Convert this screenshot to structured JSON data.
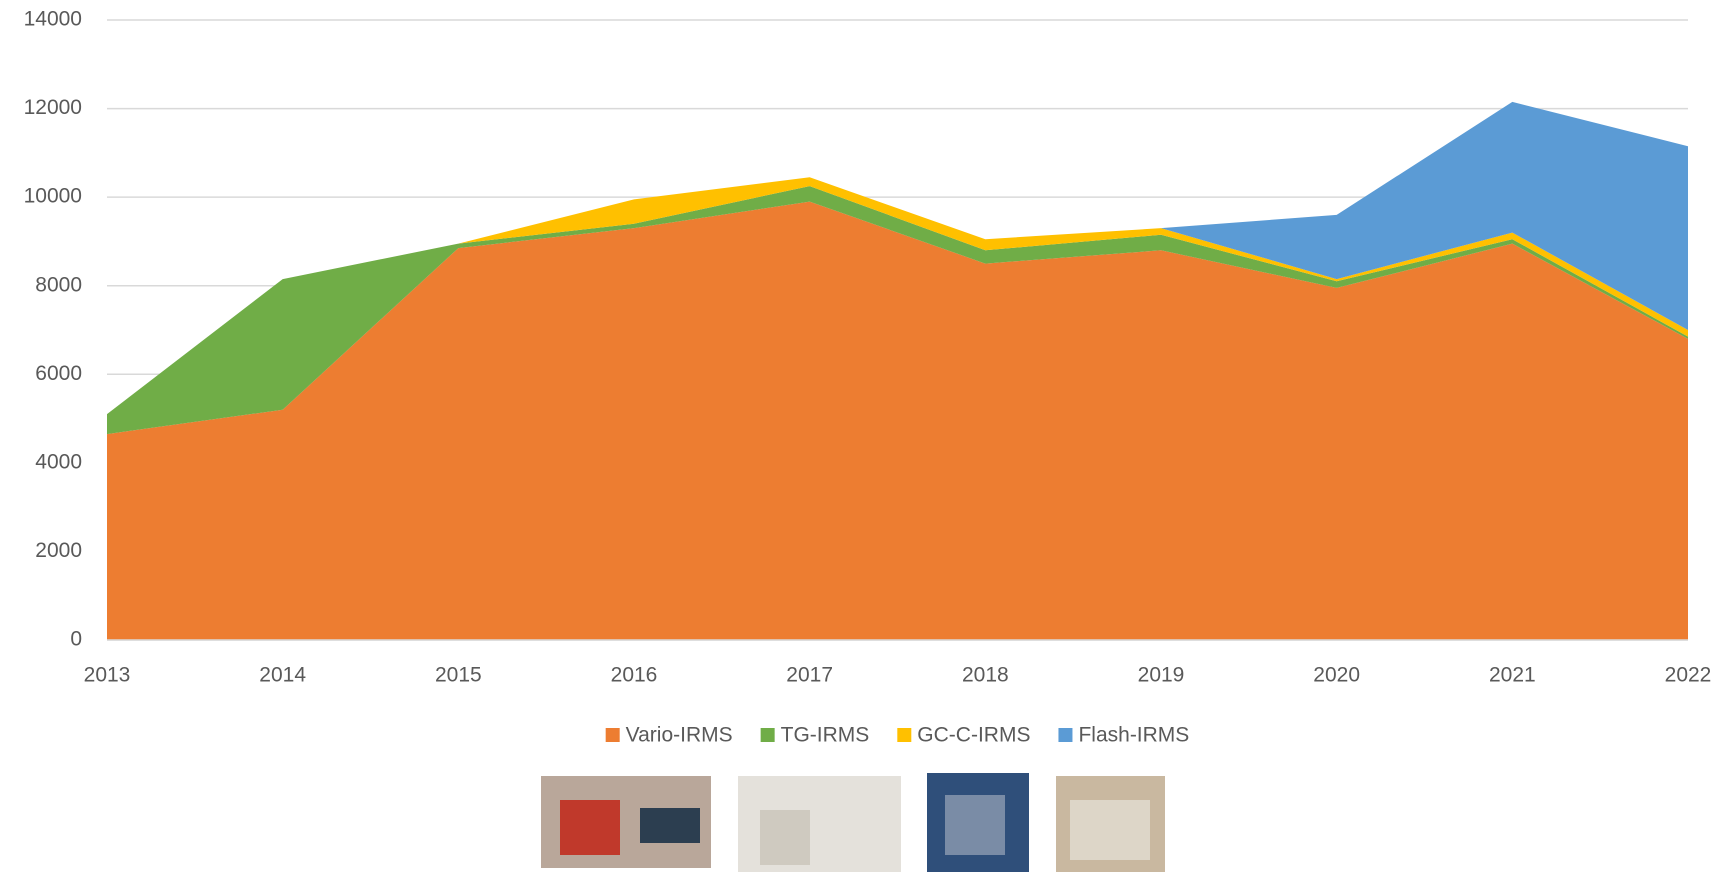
{
  "chart_data": {
    "type": "stacked_area",
    "categories": [
      "2013",
      "2014",
      "2015",
      "2016",
      "2017",
      "2018",
      "2019",
      "2020",
      "2021",
      "2022"
    ],
    "series": [
      {
        "name": "Vario-IRMS",
        "color": "#ed7d31",
        "values": [
          4650,
          5200,
          8850,
          9300,
          9900,
          8500,
          8800,
          7950,
          8950,
          6800
        ]
      },
      {
        "name": "TG-IRMS",
        "color": "#70ad47",
        "values": [
          450,
          2950,
          100,
          100,
          350,
          300,
          350,
          150,
          100,
          50
        ]
      },
      {
        "name": "GC-C-IRMS",
        "color": "#ffc000",
        "values": [
          0,
          0,
          0,
          550,
          200,
          250,
          150,
          50,
          150,
          150
        ]
      },
      {
        "name": "Flash-IRMS",
        "color": "#5b9bd5",
        "values": [
          0,
          0,
          0,
          0,
          0,
          0,
          0,
          1450,
          2950,
          4150
        ]
      }
    ],
    "ylim": [
      0,
      14000
    ],
    "yticks": [
      0,
      2000,
      4000,
      6000,
      8000,
      10000,
      12000,
      14000
    ],
    "grid": true,
    "legend": "bottom"
  }
}
